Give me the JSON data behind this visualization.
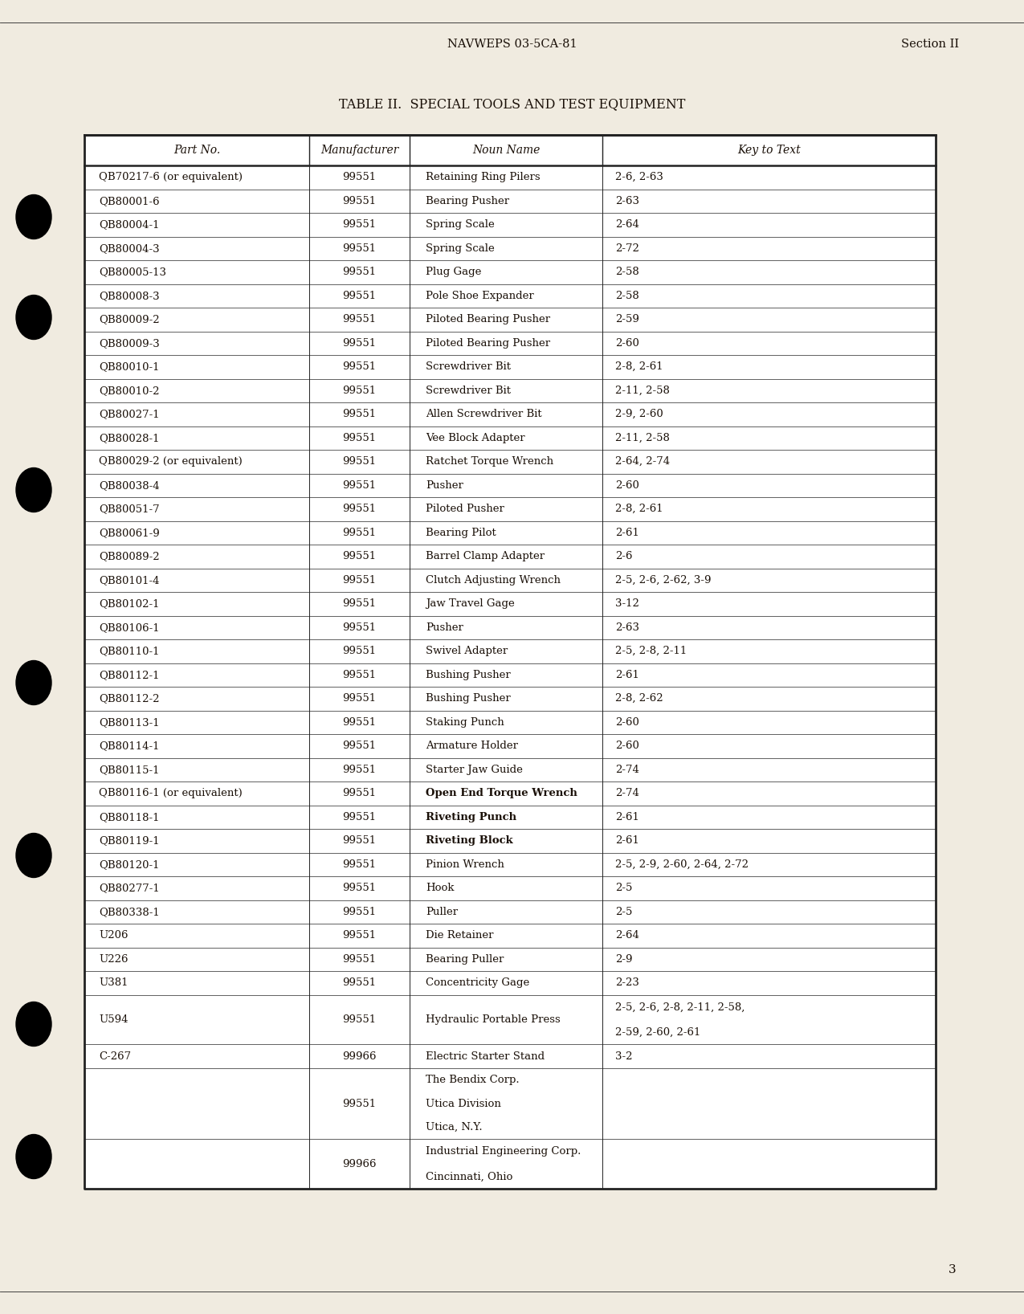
{
  "header_left": "NAVWEPS 03-5CA-81",
  "header_right": "Section II",
  "table_title": "TABLE II.  SPECIAL TOOLS AND TEST EQUIPMENT",
  "col_headers": [
    "Part No.",
    "Manufacturer",
    "Noun Name",
    "Key to Text"
  ],
  "rows": [
    [
      "QB70217-6 (or equivalent)",
      "99551",
      "Retaining Ring Pilers",
      "2-6, 2-63"
    ],
    [
      "QB80001-6",
      "99551",
      "Bearing Pusher",
      "2-63"
    ],
    [
      "QB80004-1",
      "99551",
      "Spring Scale",
      "2-64"
    ],
    [
      "QB80004-3",
      "99551",
      "Spring Scale",
      "2-72"
    ],
    [
      "QB80005-13",
      "99551",
      "Plug Gage",
      "2-58"
    ],
    [
      "QB80008-3",
      "99551",
      "Pole Shoe Expander",
      "2-58"
    ],
    [
      "QB80009-2",
      "99551",
      "Piloted Bearing Pusher",
      "2-59"
    ],
    [
      "QB80009-3",
      "99551",
      "Piloted Bearing Pusher",
      "2-60"
    ],
    [
      "QB80010-1",
      "99551",
      "Screwdriver Bit",
      "2-8, 2-61"
    ],
    [
      "QB80010-2",
      "99551",
      "Screwdriver Bit",
      "2-11, 2-58"
    ],
    [
      "QB80027-1",
      "99551",
      "Allen Screwdriver Bit",
      "2-9, 2-60"
    ],
    [
      "QB80028-1",
      "99551",
      "Vee Block Adapter",
      "2-11, 2-58"
    ],
    [
      "QB80029-2 (or equivalent)",
      "99551",
      "Ratchet Torque Wrench",
      "2-64, 2-74"
    ],
    [
      "QB80038-4",
      "99551",
      "Pusher",
      "2-60"
    ],
    [
      "QB80051-7",
      "99551",
      "Piloted Pusher",
      "2-8, 2-61"
    ],
    [
      "QB80061-9",
      "99551",
      "Bearing Pilot",
      "2-61"
    ],
    [
      "QB80089-2",
      "99551",
      "Barrel Clamp Adapter",
      "2-6"
    ],
    [
      "QB80101-4",
      "99551",
      "Clutch Adjusting Wrench",
      "2-5, 2-6, 2-62, 3-9"
    ],
    [
      "QB80102-1",
      "99551",
      "Jaw Travel Gage",
      "3-12"
    ],
    [
      "QB80106-1",
      "99551",
      "Pusher",
      "2-63"
    ],
    [
      "QB80110-1",
      "99551",
      "Swivel Adapter",
      "2-5, 2-8, 2-11"
    ],
    [
      "QB80112-1",
      "99551",
      "Bushing Pusher",
      "2-61"
    ],
    [
      "QB80112-2",
      "99551",
      "Bushing Pusher",
      "2-8, 2-62"
    ],
    [
      "QB80113-1",
      "99551",
      "Staking Punch",
      "2-60"
    ],
    [
      "QB80114-1",
      "99551",
      "Armature Holder",
      "2-60"
    ],
    [
      "QB80115-1",
      "99551",
      "Starter Jaw Guide",
      "2-74"
    ],
    [
      "QB80116-1 (or equivalent)",
      "99551",
      "Open End Torque Wrench",
      "2-74"
    ],
    [
      "QB80118-1",
      "99551",
      "Riveting Punch",
      "2-61"
    ],
    [
      "QB80119-1",
      "99551",
      "Riveting Block",
      "2-61"
    ],
    [
      "QB80120-1",
      "99551",
      "Pinion Wrench",
      "2-5, 2-9, 2-60, 2-64, 2-72"
    ],
    [
      "QB80277-1",
      "99551",
      "Hook",
      "2-5"
    ],
    [
      "QB80338-1",
      "99551",
      "Puller",
      "2-5"
    ],
    [
      "U206",
      "99551",
      "Die Retainer",
      "2-64"
    ],
    [
      "U226",
      "99551",
      "Bearing Puller",
      "2-9"
    ],
    [
      "U381",
      "99551",
      "Concentricity Gage",
      "2-23"
    ],
    [
      "U594",
      "99551",
      "Hydraulic Portable Press",
      "2-5, 2-6, 2-8, 2-11, 2-58,\n2-59, 2-60, 2-61"
    ],
    [
      "C-267",
      "99966",
      "Electric Starter Stand",
      "3-2"
    ],
    [
      "",
      "99551",
      "The Bendix Corp.\nUtica Division\nUtica, N.Y.",
      ""
    ],
    [
      "",
      "99966",
      "Industrial Engineering Corp.\nCincinnati, Ohio",
      ""
    ]
  ],
  "bold_nouns": [
    "Open End Torque Wrench",
    "Riveting Punch",
    "Riveting Block"
  ],
  "page_number": "3",
  "bg_color": "#f0ebe0",
  "text_color": "#1a1008",
  "line_color": "#222222"
}
